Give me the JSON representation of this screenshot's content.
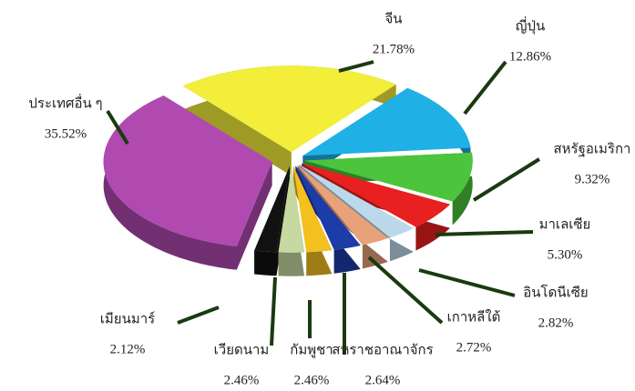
{
  "chart_data": {
    "type": "pie",
    "categories": [
      "จีน",
      "ญี่ปุ่น",
      "สหรัฐอเมริกา",
      "มาเลเซีย",
      "อินโดนีเซีย",
      "เกาหลีใต้",
      "สหราชอาณาจักร",
      "กัมพูชา",
      "เวียดนาม",
      "เมียนมาร์",
      "ประเทศอื่น ๆ"
    ],
    "values": [
      21.78,
      12.86,
      9.32,
      5.3,
      2.82,
      2.72,
      2.64,
      2.46,
      2.46,
      2.12,
      35.52
    ],
    "value_labels": [
      "21.78%",
      "12.86%",
      "9.32%",
      "5.30%",
      "2.82%",
      "2.72%",
      "2.64%",
      "2.46%",
      "2.46%",
      "2.12%",
      "35.52%"
    ],
    "colors": [
      "#f2ee3a",
      "#1fb0e6",
      "#4cc43c",
      "#e8201f",
      "#bcd9ec",
      "#e8a27a",
      "#1c3ca8",
      "#f4c020",
      "#c5d9a0",
      "#111111",
      "#b04ab0"
    ]
  }
}
